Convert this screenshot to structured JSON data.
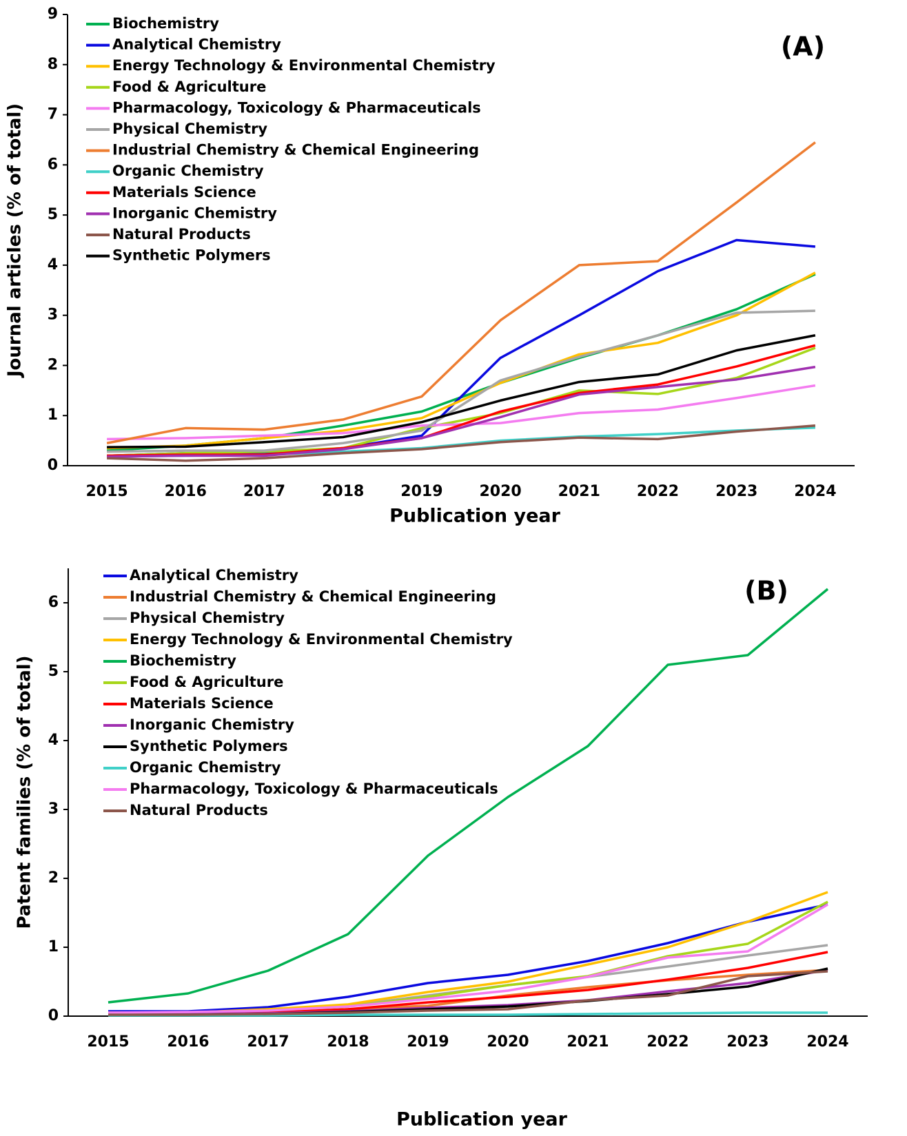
{
  "chart_data": [
    {
      "type": "line",
      "annotation": "(A)",
      "x_label": "Publication year",
      "y_label": "Journal articles (% of total)",
      "categories": [
        "2015",
        "2016",
        "2017",
        "2018",
        "2019",
        "2020",
        "2021",
        "2022",
        "2023",
        "2024"
      ],
      "ylim": [
        0,
        9
      ],
      "yticks": [
        0,
        1,
        2,
        3,
        4,
        5,
        6,
        7,
        8,
        9
      ],
      "series": [
        {
          "name": "Biochemistry",
          "color": "#00b050",
          "values": [
            0.3,
            0.4,
            0.55,
            0.8,
            1.08,
            1.65,
            2.15,
            2.6,
            3.12,
            3.82
          ]
        },
        {
          "name": "Analytical Chemistry",
          "color": "#0a0ae0",
          "values": [
            0.2,
            0.25,
            0.25,
            0.35,
            0.6,
            2.15,
            3.0,
            3.88,
            4.5,
            4.37
          ]
        },
        {
          "name": "Energy Technology & Environmental Chemistry",
          "color": "#ffc000",
          "values": [
            0.35,
            0.4,
            0.55,
            0.7,
            0.95,
            1.65,
            2.22,
            2.45,
            3.0,
            3.85
          ]
        },
        {
          "name": "Food & Agriculture",
          "color": "#a6d61a",
          "values": [
            0.2,
            0.25,
            0.28,
            0.35,
            0.75,
            1.05,
            1.5,
            1.43,
            1.75,
            2.35
          ]
        },
        {
          "name": "Pharmacology, Toxicology & Pharmaceuticals",
          "color": "#f47cf0",
          "values": [
            0.53,
            0.55,
            0.6,
            0.65,
            0.8,
            0.85,
            1.05,
            1.12,
            1.35,
            1.6
          ]
        },
        {
          "name": "Physical Chemistry",
          "color": "#a6a6a6",
          "values": [
            0.28,
            0.3,
            0.3,
            0.45,
            0.7,
            1.7,
            2.17,
            2.6,
            3.05,
            3.09
          ]
        },
        {
          "name": "Industrial Chemistry & Chemical Engineering",
          "color": "#ed7d31",
          "values": [
            0.45,
            0.75,
            0.72,
            0.92,
            1.38,
            2.9,
            4.0,
            4.08,
            5.25,
            6.45
          ]
        },
        {
          "name": "Organic Chemistry",
          "color": "#40d0c8",
          "values": [
            0.18,
            0.2,
            0.22,
            0.28,
            0.35,
            0.5,
            0.58,
            0.63,
            0.7,
            0.76
          ]
        },
        {
          "name": "Materials Science",
          "color": "#ff0000",
          "values": [
            0.2,
            0.22,
            0.22,
            0.35,
            0.55,
            1.08,
            1.45,
            1.62,
            1.98,
            2.4
          ]
        },
        {
          "name": "Inorganic Chemistry",
          "color": "#a030b0",
          "values": [
            0.18,
            0.2,
            0.2,
            0.33,
            0.55,
            0.97,
            1.42,
            1.57,
            1.72,
            1.97
          ]
        },
        {
          "name": "Natural Products",
          "color": "#8c564b",
          "values": [
            0.15,
            0.1,
            0.15,
            0.25,
            0.33,
            0.47,
            0.56,
            0.53,
            0.68,
            0.8
          ]
        },
        {
          "name": "Synthetic Polymers",
          "color": "#000000",
          "values": [
            0.37,
            0.38,
            0.47,
            0.57,
            0.87,
            1.3,
            1.67,
            1.82,
            2.3,
            2.6
          ]
        }
      ]
    },
    {
      "type": "line",
      "annotation": "(B)",
      "x_label": "Publication year",
      "y_label": "Patent families (% of total)",
      "categories": [
        "2015",
        "2016",
        "2017",
        "2018",
        "2019",
        "2020",
        "2021",
        "2022",
        "2023",
        "2024"
      ],
      "ylim": [
        0,
        6.5
      ],
      "yticks": [
        0,
        1,
        2,
        3,
        4,
        5,
        6
      ],
      "series": [
        {
          "name": "Analytical Chemistry",
          "color": "#0a0ae0",
          "values": [
            0.07,
            0.07,
            0.13,
            0.28,
            0.48,
            0.6,
            0.8,
            1.06,
            1.37,
            1.62
          ]
        },
        {
          "name": "Industrial Chemistry & Chemical Engineering",
          "color": "#ed7d31",
          "values": [
            0.03,
            0.04,
            0.05,
            0.1,
            0.15,
            0.3,
            0.42,
            0.52,
            0.6,
            0.67
          ]
        },
        {
          "name": "Physical Chemistry",
          "color": "#a6a6a6",
          "values": [
            0.05,
            0.05,
            0.08,
            0.15,
            0.3,
            0.45,
            0.57,
            0.72,
            0.88,
            1.03
          ]
        },
        {
          "name": "Energy Technology & Environmental Chemistry",
          "color": "#ffc000",
          "values": [
            0.05,
            0.05,
            0.1,
            0.17,
            0.35,
            0.5,
            0.75,
            1.0,
            1.37,
            1.8
          ]
        },
        {
          "name": "Biochemistry",
          "color": "#00b050",
          "values": [
            0.2,
            0.33,
            0.66,
            1.19,
            2.33,
            3.18,
            3.92,
            5.1,
            5.24,
            6.2
          ]
        },
        {
          "name": "Food & Agriculture",
          "color": "#a6d61a",
          "values": [
            0.04,
            0.04,
            0.07,
            0.14,
            0.28,
            0.45,
            0.58,
            0.87,
            1.05,
            1.66
          ]
        },
        {
          "name": "Materials Science",
          "color": "#ff0000",
          "values": [
            0.03,
            0.04,
            0.05,
            0.1,
            0.2,
            0.28,
            0.38,
            0.53,
            0.7,
            0.93
          ]
        },
        {
          "name": "Inorganic Chemistry",
          "color": "#a030b0",
          "values": [
            0.03,
            0.03,
            0.04,
            0.07,
            0.12,
            0.16,
            0.23,
            0.36,
            0.48,
            0.67
          ]
        },
        {
          "name": "Synthetic Polymers",
          "color": "#000000",
          "values": [
            0.02,
            0.02,
            0.03,
            0.06,
            0.1,
            0.14,
            0.22,
            0.32,
            0.43,
            0.69
          ]
        },
        {
          "name": "Organic Chemistry",
          "color": "#40d0c8",
          "values": [
            0.01,
            0.01,
            0.01,
            0.02,
            0.02,
            0.02,
            0.03,
            0.04,
            0.05,
            0.05
          ]
        },
        {
          "name": "Pharmacology, Toxicology & Pharmaceuticals",
          "color": "#f47cf0",
          "values": [
            0.05,
            0.06,
            0.08,
            0.14,
            0.25,
            0.37,
            0.57,
            0.85,
            0.94,
            1.62
          ]
        },
        {
          "name": "Natural Products",
          "color": "#8c564b",
          "values": [
            0.02,
            0.02,
            0.03,
            0.05,
            0.08,
            0.1,
            0.23,
            0.3,
            0.58,
            0.65
          ]
        }
      ]
    }
  ]
}
